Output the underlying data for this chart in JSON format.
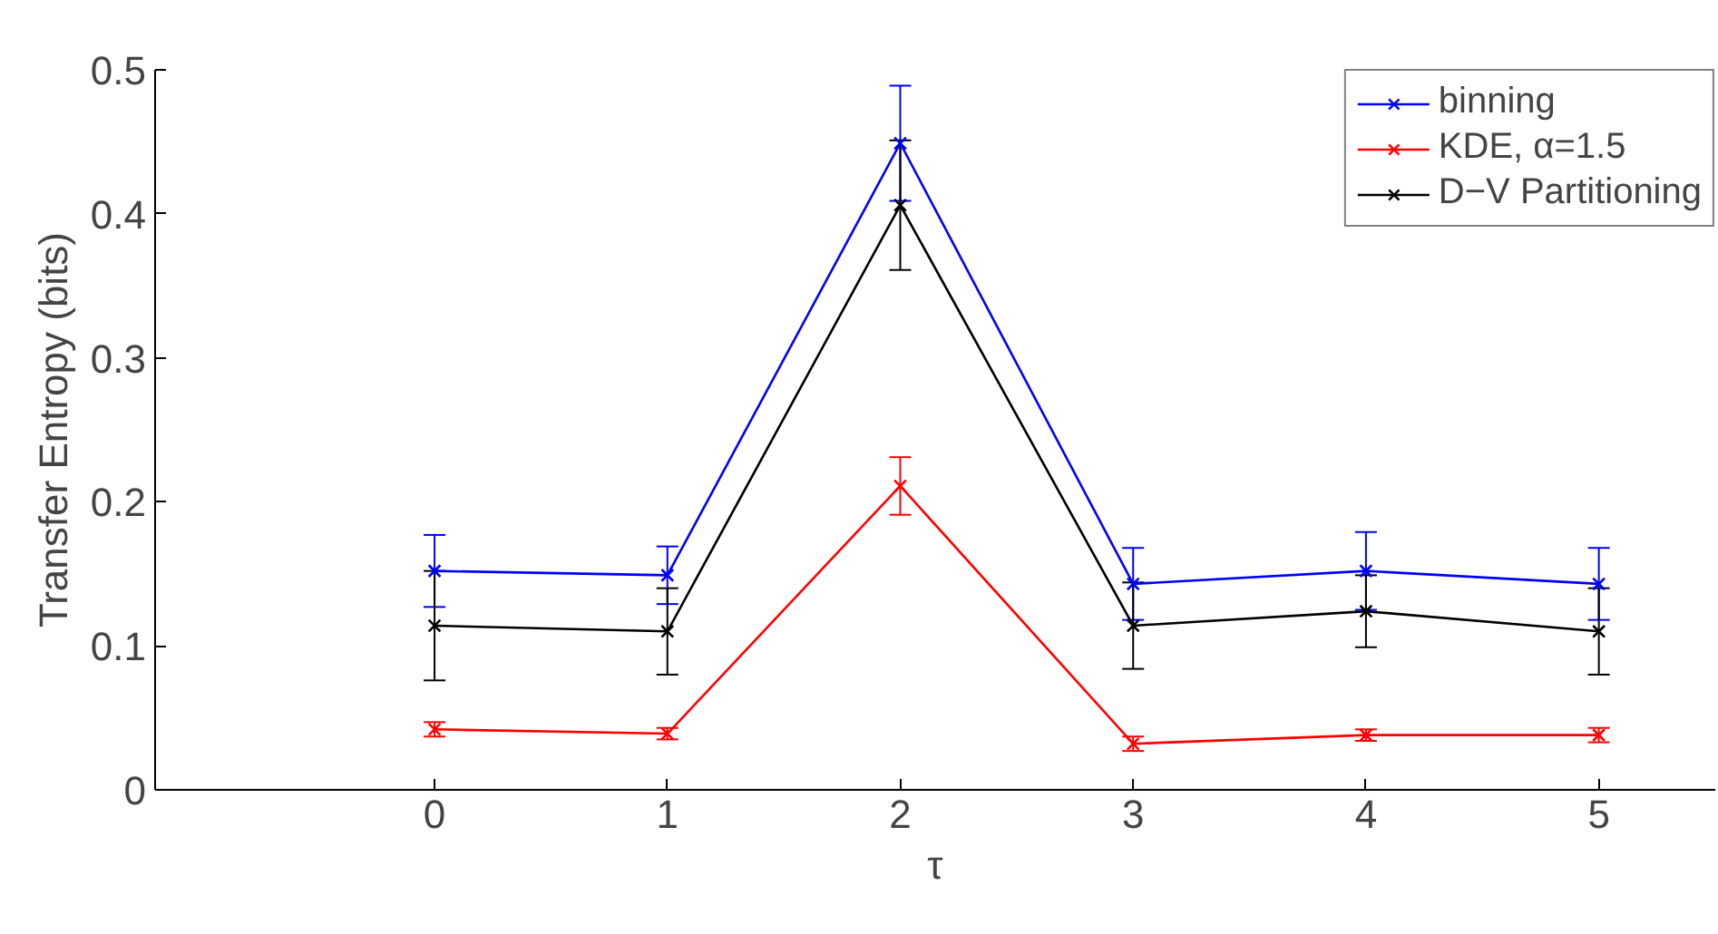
{
  "chart_data": {
    "type": "line",
    "xlabel": "τ",
    "ylabel": "Transfer Entropy (bits)",
    "x": [
      0,
      1,
      2,
      3,
      4,
      5
    ],
    "xlim": [
      -1.2,
      5.5
    ],
    "xticks": [
      0,
      1,
      2,
      3,
      4,
      5
    ],
    "ylim": [
      0,
      0.5
    ],
    "yticks": [
      0,
      0.1,
      0.2,
      0.3,
      0.4,
      0.5
    ],
    "grid": false,
    "legend": "top right",
    "marker": "cross",
    "line_style": "solid",
    "series": [
      {
        "name": "binning",
        "color": "#0000ff",
        "values": [
          0.152,
          0.149,
          0.449,
          0.143,
          0.152,
          0.143
        ],
        "errors": [
          0.025,
          0.02,
          0.04,
          0.025,
          0.027,
          0.025
        ]
      },
      {
        "name": "KDE, α=1.5",
        "color": "#ff0000",
        "values": [
          0.042,
          0.039,
          0.211,
          0.032,
          0.038,
          0.038
        ],
        "errors": [
          0.005,
          0.004,
          0.02,
          0.005,
          0.004,
          0.005
        ]
      },
      {
        "name": "D−V Partitioning",
        "color": "#000000",
        "values": [
          0.114,
          0.11,
          0.406,
          0.114,
          0.124,
          0.11
        ],
        "errors": [
          0.038,
          0.03,
          0.045,
          0.03,
          0.025,
          0.03
        ]
      }
    ]
  }
}
